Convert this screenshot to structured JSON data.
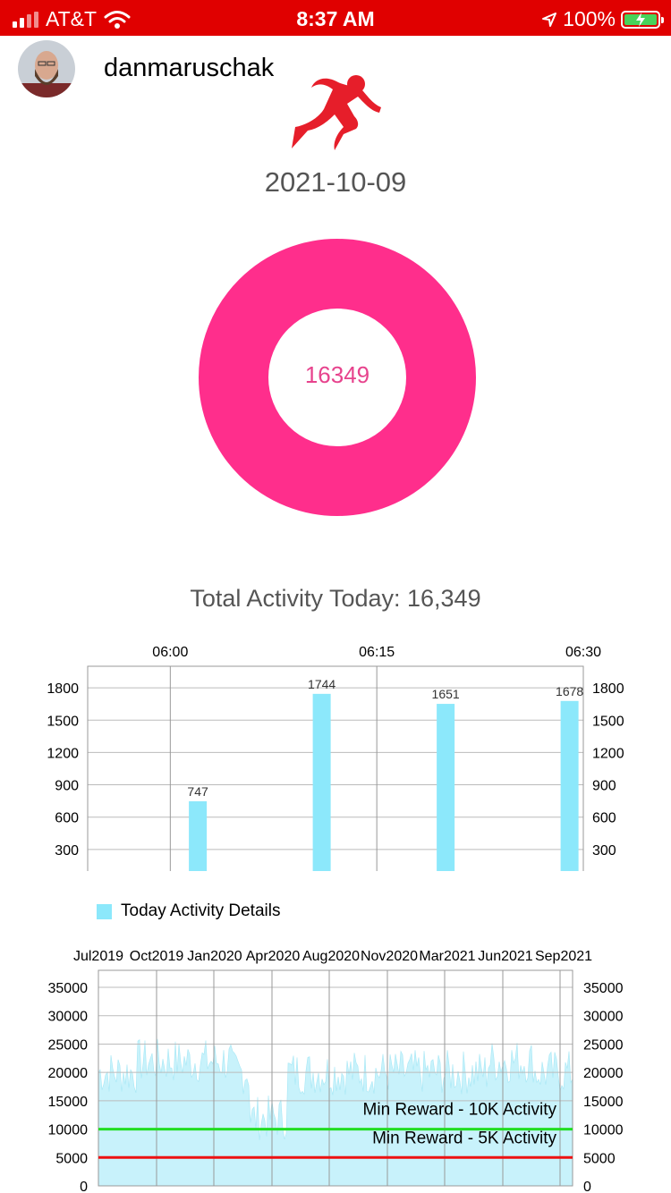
{
  "status_bar": {
    "carrier": "AT&T",
    "time": "8:37 AM",
    "battery": "100%"
  },
  "profile": {
    "username": "danmaruschak"
  },
  "header": {
    "date": "2021-10-09"
  },
  "donut": {
    "value_label": "16349",
    "fill_fraction": 1.0,
    "color": "#ff2e8c"
  },
  "summary": {
    "total_text": "Total Activity Today: 16,349"
  },
  "chart_data": [
    {
      "type": "bar",
      "x_tick_labels": [
        "06:00",
        "06:15",
        "06:30"
      ],
      "x_range_minutes": [
        0,
        36
      ],
      "x_ticks_minutes": [
        6,
        21,
        36
      ],
      "bars": [
        {
          "x_minutes": 8,
          "value": 747
        },
        {
          "x_minutes": 17,
          "value": 1744
        },
        {
          "x_minutes": 26,
          "value": 1651
        },
        {
          "x_minutes": 35,
          "value": 1678
        }
      ],
      "ylim": [
        0,
        2000
      ],
      "y_ticks": [
        0,
        300,
        600,
        900,
        1200,
        1500,
        1800
      ],
      "legend": "Today Activity Details",
      "color": "#8ce8fb",
      "grid": true
    },
    {
      "type": "area",
      "x_tick_labels": [
        "Jul2019",
        "Oct2019",
        "Jan2020",
        "Apr2020",
        "Aug2020",
        "Nov2020",
        "Mar2021",
        "Jun2021",
        "Sep2021"
      ],
      "ylim": [
        0,
        38000
      ],
      "y_ticks": [
        0,
        5000,
        10000,
        15000,
        20000,
        25000,
        30000,
        35000
      ],
      "series_color": "#c8f2fb",
      "reference_lines": [
        {
          "label": "Min Reward - 10K Activity",
          "value": 10000,
          "color": "#22dd22"
        },
        {
          "label": "Min Reward - 5K Activity",
          "value": 5000,
          "color": "#ee1111"
        }
      ],
      "grid": true
    }
  ]
}
